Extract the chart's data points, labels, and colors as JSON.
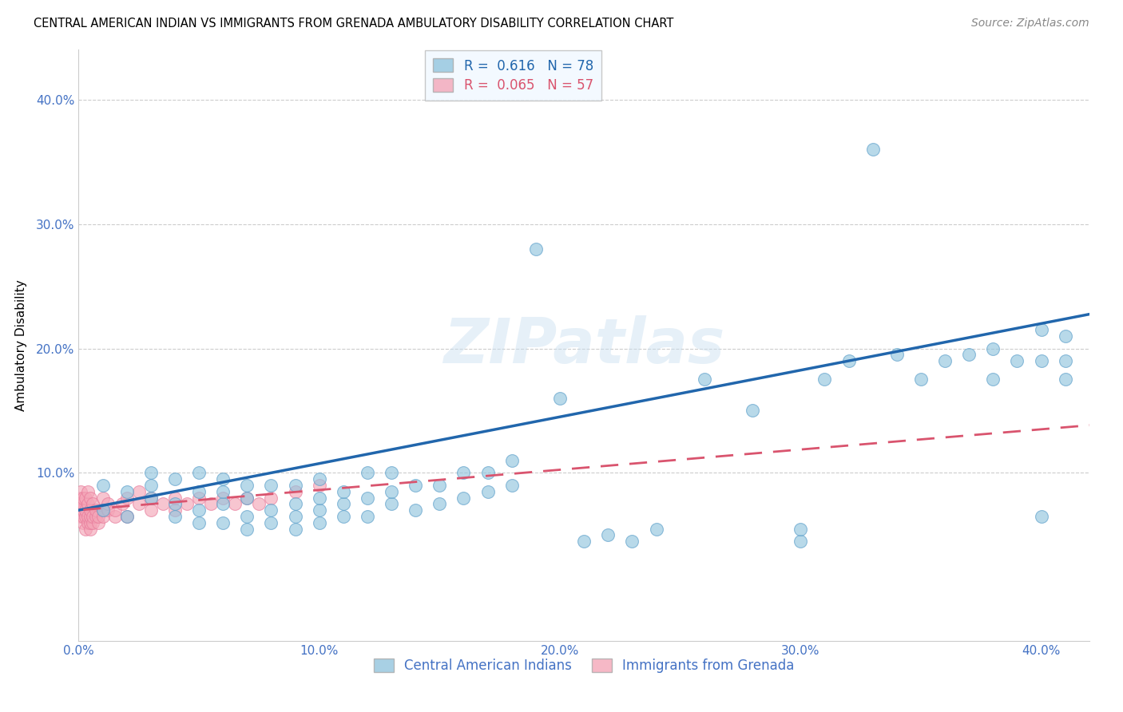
{
  "title": "CENTRAL AMERICAN INDIAN VS IMMIGRANTS FROM GRENADA AMBULATORY DISABILITY CORRELATION CHART",
  "source": "Source: ZipAtlas.com",
  "ylabel": "Ambulatory Disability",
  "blue_R": 0.616,
  "blue_N": 78,
  "pink_R": 0.065,
  "pink_N": 57,
  "blue_color": "#92c5de",
  "pink_color": "#f4a6b8",
  "blue_edge_color": "#5a9ec9",
  "pink_edge_color": "#e87a9a",
  "blue_line_color": "#2166ac",
  "pink_line_color": "#d9546e",
  "watermark": "ZIPatlas",
  "background_color": "#ffffff",
  "grid_color": "#cccccc",
  "legend_box_color": "#f0f8ff",
  "xlim": [
    0.0,
    0.42
  ],
  "ylim": [
    -0.035,
    0.44
  ],
  "xticks": [
    0.0,
    0.1,
    0.2,
    0.3,
    0.4
  ],
  "yticks": [
    0.0,
    0.1,
    0.2,
    0.3,
    0.4
  ],
  "xtick_labels": [
    "0.0%",
    "10.0%",
    "20.0%",
    "30.0%",
    "40.0%"
  ],
  "ytick_labels": [
    "",
    "10.0%",
    "20.0%",
    "30.0%",
    "40.0%"
  ],
  "blue_x": [
    0.01,
    0.01,
    0.02,
    0.02,
    0.03,
    0.03,
    0.03,
    0.04,
    0.04,
    0.04,
    0.05,
    0.05,
    0.05,
    0.05,
    0.06,
    0.06,
    0.06,
    0.06,
    0.07,
    0.07,
    0.07,
    0.07,
    0.08,
    0.08,
    0.08,
    0.09,
    0.09,
    0.09,
    0.09,
    0.1,
    0.1,
    0.1,
    0.1,
    0.11,
    0.11,
    0.11,
    0.12,
    0.12,
    0.12,
    0.13,
    0.13,
    0.13,
    0.14,
    0.14,
    0.15,
    0.15,
    0.16,
    0.16,
    0.17,
    0.17,
    0.18,
    0.18,
    0.19,
    0.2,
    0.21,
    0.22,
    0.23,
    0.24,
    0.26,
    0.28,
    0.3,
    0.3,
    0.31,
    0.32,
    0.33,
    0.34,
    0.35,
    0.36,
    0.37,
    0.38,
    0.38,
    0.39,
    0.4,
    0.4,
    0.4,
    0.41,
    0.41,
    0.41
  ],
  "blue_y": [
    0.07,
    0.09,
    0.065,
    0.085,
    0.08,
    0.09,
    0.1,
    0.065,
    0.075,
    0.095,
    0.06,
    0.07,
    0.085,
    0.1,
    0.06,
    0.075,
    0.085,
    0.095,
    0.055,
    0.065,
    0.08,
    0.09,
    0.06,
    0.07,
    0.09,
    0.055,
    0.065,
    0.075,
    0.09,
    0.06,
    0.07,
    0.08,
    0.095,
    0.065,
    0.075,
    0.085,
    0.065,
    0.08,
    0.1,
    0.075,
    0.085,
    0.1,
    0.07,
    0.09,
    0.075,
    0.09,
    0.08,
    0.1,
    0.085,
    0.1,
    0.09,
    0.11,
    0.28,
    0.16,
    0.045,
    0.05,
    0.045,
    0.055,
    0.175,
    0.15,
    0.045,
    0.055,
    0.175,
    0.19,
    0.36,
    0.195,
    0.175,
    0.19,
    0.195,
    0.175,
    0.2,
    0.19,
    0.065,
    0.19,
    0.215,
    0.175,
    0.19,
    0.21
  ],
  "pink_x": [
    0.001,
    0.001,
    0.001,
    0.001,
    0.001,
    0.002,
    0.002,
    0.002,
    0.002,
    0.002,
    0.003,
    0.003,
    0.003,
    0.003,
    0.004,
    0.004,
    0.004,
    0.004,
    0.005,
    0.005,
    0.005,
    0.005,
    0.005,
    0.006,
    0.006,
    0.006,
    0.007,
    0.007,
    0.008,
    0.008,
    0.01,
    0.01,
    0.01,
    0.012,
    0.012,
    0.015,
    0.015,
    0.018,
    0.02,
    0.02,
    0.025,
    0.025,
    0.03,
    0.03,
    0.035,
    0.04,
    0.04,
    0.045,
    0.05,
    0.055,
    0.06,
    0.065,
    0.07,
    0.075,
    0.08,
    0.09,
    0.1
  ],
  "pink_y": [
    0.075,
    0.08,
    0.085,
    0.065,
    0.07,
    0.06,
    0.065,
    0.07,
    0.075,
    0.08,
    0.055,
    0.065,
    0.07,
    0.08,
    0.06,
    0.065,
    0.075,
    0.085,
    0.055,
    0.06,
    0.065,
    0.07,
    0.08,
    0.06,
    0.065,
    0.075,
    0.065,
    0.07,
    0.06,
    0.065,
    0.065,
    0.07,
    0.08,
    0.07,
    0.075,
    0.065,
    0.07,
    0.075,
    0.065,
    0.08,
    0.075,
    0.085,
    0.07,
    0.08,
    0.075,
    0.07,
    0.08,
    0.075,
    0.08,
    0.075,
    0.08,
    0.075,
    0.08,
    0.075,
    0.08,
    0.085,
    0.09
  ],
  "title_fontsize": 10.5,
  "axis_tick_fontsize": 11,
  "ylabel_fontsize": 11,
  "legend_fontsize": 12,
  "source_fontsize": 10,
  "tick_color": "#4472c4"
}
